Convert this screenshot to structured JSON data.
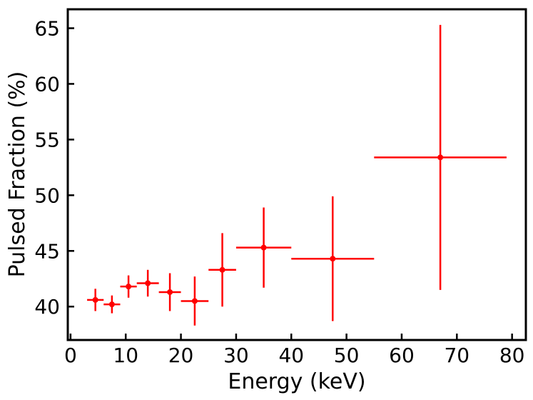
{
  "chart_data": {
    "type": "scatter",
    "title": "",
    "xlabel": "Energy (keV)",
    "ylabel": "Pulsed Fraction (%)",
    "xlim": [
      -0.5,
      82.5
    ],
    "ylim": [
      37,
      66.7
    ],
    "xticks": [
      0,
      10,
      20,
      30,
      40,
      50,
      60,
      70,
      80
    ],
    "yticks": [
      40,
      45,
      50,
      55,
      60,
      65
    ],
    "grid": false,
    "legend": "none",
    "color": "#ff0000",
    "series": [
      {
        "points": [
          {
            "x": 4.5,
            "xerr": 1.5,
            "y": 40.6,
            "yerr": 1.0
          },
          {
            "x": 7.5,
            "xerr": 1.5,
            "y": 40.2,
            "yerr": 0.8
          },
          {
            "x": 10.5,
            "xerr": 1.5,
            "y": 41.8,
            "yerr": 1.0
          },
          {
            "x": 14.0,
            "xerr": 2.0,
            "y": 42.1,
            "yerr": 1.2
          },
          {
            "x": 18.0,
            "xerr": 2.0,
            "y": 41.3,
            "yerr": 1.7
          },
          {
            "x": 22.5,
            "xerr": 2.5,
            "y": 40.5,
            "yerr": 2.2
          },
          {
            "x": 27.5,
            "xerr": 2.5,
            "y": 43.3,
            "yerr": 3.3
          },
          {
            "x": 35.0,
            "xerr": 5.0,
            "y": 45.3,
            "yerr": 3.6
          },
          {
            "x": 47.5,
            "xerr": 7.5,
            "y": 44.3,
            "yerr": 5.6
          },
          {
            "x": 67.0,
            "xerr": 12.0,
            "y": 53.4,
            "yerr": 11.9
          }
        ]
      }
    ]
  }
}
